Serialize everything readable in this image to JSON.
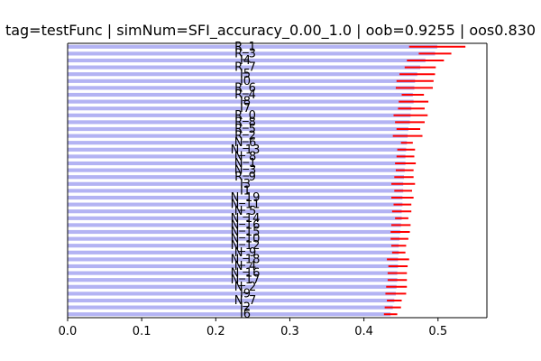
{
  "chart_data": {
    "type": "bar",
    "orientation": "horizontal",
    "title": "tag=testFunc | simNum=SFI_accuracy_0.00_1.0 | oob=0.9255 | oos0.830",
    "xlabel": "",
    "ylabel": "",
    "xlim": [
      0.0,
      0.566
    ],
    "xticks": [
      0.0,
      0.1,
      0.2,
      0.3,
      0.4,
      0.5
    ],
    "xtick_labels": [
      "0.0",
      "0.1",
      "0.2",
      "0.3",
      "0.4",
      "0.5"
    ],
    "grid": false,
    "legend": "none",
    "categories": [
      "R_1",
      "R_3",
      "I4",
      "R_7",
      "I5",
      "I0",
      "R_6",
      "R_4",
      "I8",
      "I7",
      "R_0",
      "R_8",
      "R_5",
      "R_2",
      "N_6",
      "N_13",
      "N_8",
      "N_1",
      "N_3",
      "R_9",
      "I3",
      "I1",
      "N_19",
      "N_11",
      "N_5",
      "N_14",
      "N_16",
      "N_15",
      "N_10",
      "N_12",
      "N_9",
      "N_18",
      "N_4",
      "N_16",
      "N_17",
      "N_2",
      "I9",
      "N_7",
      "I2",
      "I6"
    ],
    "values": [
      0.499,
      0.496,
      0.483,
      0.476,
      0.472,
      0.469,
      0.468,
      0.466,
      0.467,
      0.464,
      0.463,
      0.462,
      0.46,
      0.459,
      0.458,
      0.457,
      0.456,
      0.456,
      0.455,
      0.454,
      0.453,
      0.453,
      0.452,
      0.452,
      0.451,
      0.451,
      0.45,
      0.449,
      0.448,
      0.447,
      0.447,
      0.446,
      0.446,
      0.445,
      0.445,
      0.444,
      0.443,
      0.441,
      0.439,
      0.436
    ],
    "errors": [
      0.038,
      0.022,
      0.025,
      0.021,
      0.024,
      0.025,
      0.025,
      0.015,
      0.02,
      0.018,
      0.023,
      0.02,
      0.016,
      0.02,
      0.008,
      0.012,
      0.012,
      0.014,
      0.012,
      0.013,
      0.016,
      0.012,
      0.015,
      0.012,
      0.013,
      0.009,
      0.013,
      0.013,
      0.012,
      0.01,
      0.009,
      0.015,
      0.013,
      0.013,
      0.013,
      0.014,
      0.014,
      0.01,
      0.011,
      0.009
    ],
    "colors": {
      "bar": "#b3b3f3",
      "error": "#ff0000",
      "axis": "#000000"
    }
  }
}
